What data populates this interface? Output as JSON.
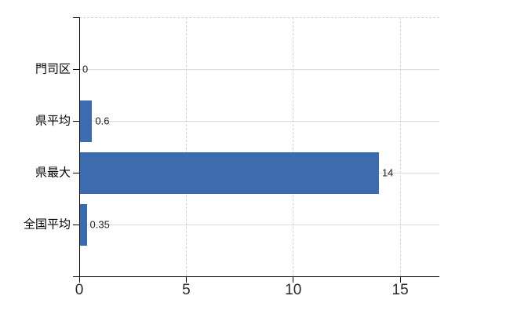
{
  "chart_data": {
    "type": "bar",
    "orientation": "horizontal",
    "title": "",
    "xlabel": "",
    "ylabel": "",
    "categories": [
      "門司区",
      "県平均",
      "県最大",
      "全国平均"
    ],
    "values": [
      0,
      0.6,
      14,
      0.35
    ],
    "value_labels": [
      "0",
      "0.6",
      "14",
      "0.35"
    ],
    "xlim": [
      0,
      16.83
    ],
    "xticks": [
      0,
      5,
      10,
      15
    ],
    "xtick_labels": [
      "0",
      "5",
      "10",
      "15"
    ],
    "grid": true,
    "legend": false,
    "colors": {
      "bar": "#3d6cae",
      "axis": "#000000",
      "gridline_horizontal": "#d8ded8",
      "gridline_vertical_dashed": "#d2d2d8",
      "text": "#000000",
      "background": "#ffffff"
    }
  }
}
